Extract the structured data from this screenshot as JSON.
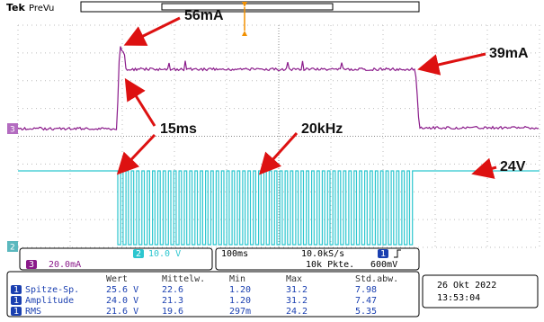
{
  "header": {
    "brand": "Tek",
    "mode": "PreVu"
  },
  "annotations": [
    "56mA",
    "39mA",
    "15ms",
    "20kHz",
    "24V"
  ],
  "channels": {
    "ch2": {
      "number": "2",
      "scale": "10.0 V"
    },
    "ch3": {
      "number": "3",
      "scale": "20.0mA"
    }
  },
  "timebase": {
    "time_div": "100ms",
    "sample_rate": "10.0kS/s",
    "record": "10k Pkte.",
    "trigger_channel": "1",
    "trigger_level": "600mV"
  },
  "measurements": {
    "columns": [
      "Wert",
      "Mittelw.",
      "Min",
      "Max",
      "Std.abw."
    ],
    "rows": [
      {
        "channel": "1",
        "name": "Spitze-Sp.",
        "values": [
          "25.6 V",
          "22.6",
          "1.20",
          "31.2",
          "7.98"
        ]
      },
      {
        "channel": "1",
        "name": "Amplitude",
        "values": [
          "24.0 V",
          "21.3",
          "1.20",
          "31.2",
          "7.47"
        ]
      },
      {
        "channel": "1",
        "name": "RMS",
        "values": [
          "21.6 V",
          "19.6",
          "297m",
          "24.2",
          "5.35"
        ]
      }
    ]
  },
  "datetime": {
    "date": "26 Okt 2022",
    "time": "13:53:04"
  }
}
